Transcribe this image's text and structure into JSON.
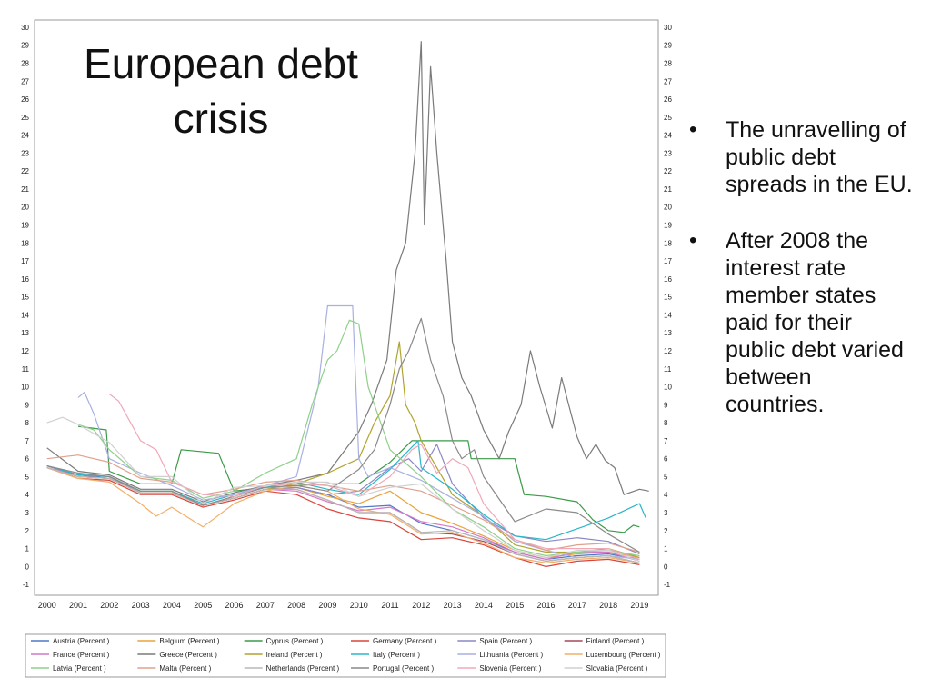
{
  "slide": {
    "title": "European debt crisis",
    "bullets": [
      "The unravelling of public debt spreads in the EU.",
      "After 2008 the interest rate member states paid for their public debt varied between countries."
    ]
  },
  "chart_data": {
    "type": "line",
    "title": "",
    "xlabel": "",
    "ylabel": "",
    "xlim": [
      1999.6,
      2019.6
    ],
    "ylim": [
      -1,
      30
    ],
    "yticks": [
      -1,
      0,
      1,
      2,
      3,
      4,
      5,
      6,
      7,
      8,
      9,
      10,
      11,
      12,
      13,
      14,
      15,
      16,
      17,
      18,
      19,
      20,
      21,
      22,
      23,
      24,
      25,
      26,
      27,
      28,
      29,
      30
    ],
    "xticks": [
      2000,
      2001,
      2002,
      2003,
      2004,
      2005,
      2006,
      2007,
      2008,
      2009,
      2010,
      2011,
      2012,
      2013,
      2014,
      2015,
      2016,
      2017,
      2018,
      2019
    ],
    "grid": true,
    "legend_position": "bottom",
    "series": [
      {
        "name": "Austria (Percent )",
        "color": "#4e79c7",
        "x": [
          2000,
          2001,
          2002,
          2003,
          2004,
          2005,
          2006,
          2007,
          2008,
          2009,
          2010,
          2011,
          2012,
          2013,
          2014,
          2015,
          2016,
          2017,
          2018,
          2019
        ],
        "values": [
          5.6,
          5.1,
          4.9,
          4.1,
          4.1,
          3.4,
          3.8,
          4.3,
          4.4,
          4.0,
          3.3,
          3.4,
          2.4,
          2.0,
          1.5,
          0.8,
          0.4,
          0.6,
          0.7,
          0.4
        ]
      },
      {
        "name": "Belgium (Percent )",
        "color": "#e8a33c",
        "x": [
          2000,
          2001,
          2002,
          2003,
          2004,
          2005,
          2006,
          2007,
          2008,
          2009,
          2010,
          2011,
          2012,
          2013,
          2014,
          2015,
          2016,
          2017,
          2018,
          2019
        ],
        "values": [
          5.6,
          5.1,
          5.0,
          4.2,
          4.2,
          3.4,
          3.8,
          4.3,
          4.4,
          3.9,
          3.5,
          4.2,
          3.0,
          2.4,
          1.7,
          0.9,
          0.5,
          0.7,
          0.8,
          0.5
        ]
      },
      {
        "name": "Cyprus (Percent )",
        "color": "#3c9a48",
        "x": [
          2001,
          2001.9,
          2002,
          2003,
          2004,
          2004.3,
          2005.5,
          2006,
          2007,
          2008,
          2009,
          2010,
          2011,
          2011.7,
          2012,
          2013,
          2013.5,
          2013.6,
          2014,
          2015,
          2015.3,
          2016,
          2017,
          2017.5,
          2018,
          2018.5,
          2018.8,
          2019
        ],
        "values": [
          7.8,
          7.6,
          5.3,
          4.6,
          4.6,
          6.5,
          6.3,
          4.2,
          4.4,
          4.5,
          4.6,
          4.6,
          5.8,
          7.0,
          7.0,
          7.0,
          7.0,
          6.0,
          6.0,
          6.0,
          4.0,
          3.9,
          3.6,
          2.6,
          2.0,
          1.9,
          2.3,
          2.2
        ]
      },
      {
        "name": "Germany (Percent )",
        "color": "#d9453c",
        "x": [
          2000,
          2001,
          2002,
          2003,
          2004,
          2005,
          2006,
          2007,
          2008,
          2009,
          2010,
          2011,
          2012,
          2013,
          2014,
          2015,
          2016,
          2017,
          2018,
          2019
        ],
        "values": [
          5.5,
          4.9,
          4.8,
          4.0,
          4.0,
          3.3,
          3.7,
          4.2,
          4.0,
          3.2,
          2.7,
          2.5,
          1.5,
          1.6,
          1.2,
          0.5,
          0.0,
          0.3,
          0.4,
          0.1
        ]
      },
      {
        "name": "Spain (Percent )",
        "color": "#8c87c4",
        "x": [
          2000,
          2001,
          2002,
          2003,
          2004,
          2005,
          2006,
          2007,
          2008,
          2009,
          2010,
          2011,
          2011.6,
          2012,
          2012.5,
          2013,
          2014,
          2015,
          2016,
          2017,
          2018,
          2019
        ],
        "values": [
          5.6,
          5.1,
          5.0,
          4.1,
          4.1,
          3.4,
          3.8,
          4.3,
          4.4,
          4.0,
          4.2,
          5.5,
          6.0,
          5.3,
          6.8,
          4.6,
          2.7,
          1.7,
          1.4,
          1.6,
          1.4,
          0.7
        ]
      },
      {
        "name": "Finland (Percent )",
        "color": "#a7465a",
        "x": [
          2000,
          2001,
          2002,
          2003,
          2004,
          2005,
          2006,
          2007,
          2008,
          2009,
          2010,
          2011,
          2012,
          2013,
          2014,
          2015,
          2016,
          2017,
          2018,
          2019
        ],
        "values": [
          5.5,
          5.0,
          4.9,
          4.1,
          4.1,
          3.4,
          3.8,
          4.3,
          4.3,
          3.7,
          3.0,
          3.0,
          1.9,
          1.8,
          1.4,
          0.7,
          0.3,
          0.5,
          0.6,
          0.2
        ]
      },
      {
        "name": "France (Percent )",
        "color": "#d478c8",
        "x": [
          2000,
          2001,
          2002,
          2003,
          2004,
          2005,
          2006,
          2007,
          2008,
          2009,
          2010,
          2011,
          2012,
          2013,
          2014,
          2015,
          2016,
          2017,
          2018,
          2019
        ],
        "values": [
          5.6,
          5.0,
          4.9,
          4.1,
          4.1,
          3.4,
          3.8,
          4.3,
          4.2,
          3.6,
          3.1,
          3.3,
          2.5,
          2.2,
          1.6,
          0.8,
          0.4,
          0.8,
          0.8,
          0.3
        ]
      },
      {
        "name": "Greece (Percent )",
        "color": "#7a7a7a",
        "x": [
          2000,
          2001,
          2002,
          2003,
          2004,
          2005,
          2006,
          2007,
          2008,
          2009,
          2010,
          2010.4,
          2010.9,
          2011.2,
          2011.5,
          2011.8,
          2012.0,
          2012.1,
          2012.3,
          2012.5,
          2012.8,
          2013.0,
          2013.3,
          2013.6,
          2014.0,
          2014.5,
          2014.8,
          2015.2,
          2015.5,
          2015.8,
          2016.2,
          2016.5,
          2017.0,
          2017.3,
          2017.6,
          2017.9,
          2018.2,
          2018.5,
          2019.0,
          2019.3
        ],
        "values": [
          6.6,
          5.3,
          5.1,
          4.3,
          4.3,
          3.6,
          4.1,
          4.5,
          4.8,
          5.2,
          7.5,
          9.0,
          11.5,
          16.5,
          18.0,
          23.0,
          29.2,
          19.0,
          27.8,
          23.0,
          17.0,
          12.5,
          10.5,
          9.5,
          7.6,
          6.0,
          7.5,
          9.0,
          12.0,
          10.0,
          7.7,
          10.5,
          7.2,
          6.0,
          6.8,
          5.9,
          5.5,
          4.0,
          4.3,
          4.2
        ]
      },
      {
        "name": "Ireland (Percent )",
        "color": "#b0a430",
        "x": [
          2000,
          2001,
          2002,
          2003,
          2004,
          2005,
          2006,
          2007,
          2008,
          2009,
          2010,
          2010.5,
          2011.0,
          2011.3,
          2011.5,
          2011.8,
          2012.0,
          2012.5,
          2013,
          2014,
          2015,
          2016,
          2017,
          2018,
          2019
        ],
        "values": [
          5.5,
          5.0,
          4.9,
          4.1,
          4.1,
          3.4,
          3.8,
          4.3,
          4.6,
          5.2,
          6.0,
          8.0,
          9.5,
          12.5,
          9.0,
          8.0,
          7.0,
          5.5,
          4.0,
          2.8,
          1.2,
          0.8,
          0.8,
          1.0,
          0.5
        ]
      },
      {
        "name": "Italy (Percent )",
        "color": "#2bb5c9",
        "x": [
          2000,
          2001,
          2002,
          2003,
          2004,
          2005,
          2006,
          2007,
          2008,
          2009,
          2010,
          2011,
          2011.9,
          2012,
          2013,
          2014,
          2015,
          2016,
          2017,
          2018,
          2019,
          2019.2
        ],
        "values": [
          5.6,
          5.1,
          5.0,
          4.2,
          4.2,
          3.5,
          4.0,
          4.4,
          4.7,
          4.3,
          4.0,
          5.4,
          7.0,
          5.5,
          4.3,
          2.9,
          1.7,
          1.5,
          2.1,
          2.7,
          3.5,
          2.7
        ]
      },
      {
        "name": "Lithuania (Percent )",
        "color": "#a8b0e0",
        "x": [
          2001,
          2001.2,
          2001.5,
          2002,
          2003,
          2004,
          2005,
          2006,
          2007,
          2008,
          2008.7,
          2009.0,
          2009.8,
          2010.0,
          2010.3,
          2011,
          2012,
          2013,
          2014,
          2015,
          2016,
          2017,
          2018,
          2019
        ],
        "values": [
          9.4,
          9.7,
          8.5,
          6.0,
          5.2,
          4.5,
          3.7,
          4.0,
          4.5,
          5.0,
          10.0,
          14.5,
          14.5,
          6.0,
          5.0,
          5.5,
          4.8,
          3.8,
          2.8,
          1.4,
          0.9,
          0.5,
          0.6,
          0.4
        ]
      },
      {
        "name": "Luxembourg (Percent )",
        "color": "#f0b06a",
        "x": [
          2000,
          2001,
          2002,
          2003,
          2003.5,
          2004,
          2005,
          2006,
          2007,
          2008,
          2009,
          2010,
          2011,
          2012,
          2013,
          2014,
          2015,
          2016,
          2017,
          2018,
          2019
        ],
        "values": [
          5.5,
          4.9,
          4.7,
          3.5,
          2.8,
          3.3,
          2.2,
          3.5,
          4.2,
          4.5,
          4.2,
          3.2,
          2.9,
          1.8,
          1.9,
          1.3,
          0.5,
          0.2,
          0.4,
          0.5,
          0.2
        ]
      },
      {
        "name": "Latvia (Percent )",
        "color": "#8fd08a",
        "x": [
          2001,
          2001.5,
          2002,
          2003,
          2004,
          2005,
          2006,
          2007,
          2008,
          2008.5,
          2009.0,
          2009.3,
          2009.7,
          2010.0,
          2010.3,
          2011,
          2012,
          2013,
          2014,
          2015,
          2016,
          2017,
          2018,
          2019
        ],
        "values": [
          7.9,
          7.6,
          6.5,
          5.0,
          4.8,
          3.8,
          4.2,
          5.2,
          6.0,
          9.0,
          11.5,
          12.0,
          13.7,
          13.5,
          10.0,
          6.5,
          5.0,
          3.2,
          2.2,
          1.0,
          0.6,
          0.8,
          0.9,
          0.6
        ]
      },
      {
        "name": "Malta (Percent )",
        "color": "#e0a08c",
        "x": [
          2000,
          2001,
          2002,
          2003,
          2004,
          2005,
          2006,
          2007,
          2008,
          2009,
          2010,
          2011,
          2012,
          2013,
          2014,
          2015,
          2016,
          2017,
          2018,
          2019
        ],
        "values": [
          6.0,
          6.2,
          5.8,
          4.9,
          4.7,
          4.0,
          4.3,
          4.7,
          4.8,
          4.5,
          4.2,
          4.5,
          4.2,
          3.4,
          2.6,
          1.5,
          0.9,
          1.2,
          1.3,
          0.8
        ]
      },
      {
        "name": "Netherlands (Percent )",
        "color": "#b8b8b8",
        "x": [
          2000,
          2001,
          2002,
          2003,
          2004,
          2005,
          2006,
          2007,
          2008,
          2009,
          2010,
          2011,
          2012,
          2013,
          2014,
          2015,
          2016,
          2017,
          2018,
          2019
        ],
        "values": [
          5.5,
          5.0,
          4.9,
          4.1,
          4.1,
          3.4,
          3.8,
          4.3,
          4.3,
          3.7,
          3.0,
          3.0,
          1.9,
          2.0,
          1.5,
          0.7,
          0.3,
          0.5,
          0.6,
          0.2
        ]
      },
      {
        "name": "Portugal (Percent )",
        "color": "#8a8a8a",
        "x": [
          2000,
          2001,
          2002,
          2003,
          2004,
          2005,
          2006,
          2007,
          2008,
          2009,
          2010,
          2010.5,
          2011.0,
          2011.3,
          2011.6,
          2012.0,
          2012.3,
          2012.7,
          2013.0,
          2013.3,
          2013.7,
          2014.0,
          2015,
          2016,
          2017,
          2018,
          2019
        ],
        "values": [
          5.6,
          5.2,
          5.0,
          4.2,
          4.2,
          3.4,
          3.9,
          4.4,
          4.5,
          4.2,
          5.4,
          6.5,
          9.0,
          11.0,
          12.0,
          13.8,
          11.5,
          9.5,
          7.0,
          6.0,
          6.5,
          5.0,
          2.5,
          3.2,
          3.0,
          1.8,
          0.8
        ]
      },
      {
        "name": "Slovenia (Percent )",
        "color": "#f0a8b8",
        "x": [
          2002,
          2002.3,
          2003,
          2003.5,
          2004,
          2005,
          2006,
          2007,
          2008,
          2009,
          2010,
          2011,
          2011.7,
          2012.0,
          2012.5,
          2013.0,
          2013.5,
          2014,
          2015,
          2016,
          2017,
          2018,
          2019
        ],
        "values": [
          9.6,
          9.2,
          7.0,
          6.5,
          4.7,
          4.0,
          3.9,
          4.5,
          4.6,
          4.5,
          3.9,
          5.0,
          6.5,
          6.8,
          5.2,
          6.0,
          5.5,
          3.5,
          1.5,
          1.0,
          1.0,
          1.0,
          0.4
        ]
      },
      {
        "name": "Slovakia (Percent )",
        "color": "#d0d0d0",
        "x": [
          2000,
          2000.5,
          2001,
          2002,
          2003,
          2004,
          2005,
          2006,
          2007,
          2008,
          2009,
          2010,
          2011,
          2012,
          2013,
          2014,
          2015,
          2016,
          2017,
          2018,
          2019
        ],
        "values": [
          8.0,
          8.3,
          7.9,
          6.9,
          5.0,
          5.0,
          3.5,
          4.4,
          4.5,
          4.7,
          4.7,
          3.9,
          4.4,
          4.6,
          3.2,
          2.0,
          0.9,
          0.5,
          0.9,
          0.9,
          0.3
        ]
      }
    ]
  }
}
